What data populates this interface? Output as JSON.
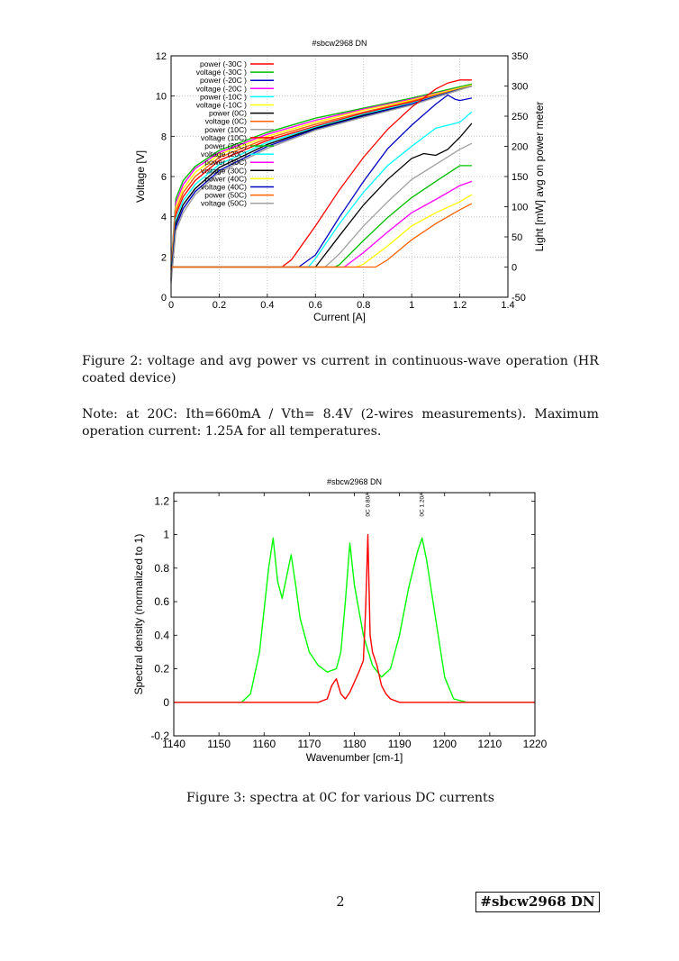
{
  "figure2": {
    "chart_data": {
      "type": "line",
      "title": "#sbcw2968 DN",
      "xlabel": "Current [A]",
      "ylabel": "Voltage [V]",
      "y2label": "Light [mW] avg on power meter",
      "xlim": [
        0,
        1.4
      ],
      "ylim": [
        0,
        12
      ],
      "y2lim": [
        -50,
        350
      ],
      "xticks": [
        "0",
        "0.2",
        "0.4",
        "0.6",
        "0.8",
        "1",
        "1.2",
        "1.4"
      ],
      "yticks": [
        "0",
        "2",
        "4",
        "6",
        "8",
        "10",
        "12"
      ],
      "y2ticks": [
        "-50",
        "0",
        "50",
        "100",
        "150",
        "200",
        "250",
        "300",
        "350"
      ],
      "grid": true,
      "legend_position": "top-left",
      "legend": [
        "power (-30C )",
        "voltage (-30C )",
        "power (-20C )",
        "voltage (-20C )",
        "power (-10C )",
        "voltage (-10C )",
        "power (0C)",
        "voltage (0C)",
        "power (10C)",
        "voltage (10C)",
        "power (20C)",
        "voltage (20C)",
        "power (30C)",
        "voltage (30C)",
        "power (40C)",
        "voltage (40C)",
        "power (50C)",
        "voltage (50C)"
      ],
      "voltage_series": [
        {
          "name": "voltage (-30C )",
          "color": "#00c000",
          "x": [
            0,
            0.02,
            0.05,
            0.1,
            0.2,
            0.4,
            0.6,
            0.8,
            1.0,
            1.25
          ],
          "y": [
            1.5,
            4.9,
            5.8,
            6.5,
            7.3,
            8.2,
            8.9,
            9.4,
            9.9,
            10.6
          ]
        },
        {
          "name": "voltage (-20C )",
          "color": "#ff00ff",
          "x": [
            0,
            0.02,
            0.05,
            0.1,
            0.2,
            0.4,
            0.6,
            0.8,
            1.0,
            1.25
          ],
          "y": [
            1.4,
            4.7,
            5.6,
            6.4,
            7.2,
            8.1,
            8.8,
            9.35,
            9.85,
            10.55
          ]
        },
        {
          "name": "voltage (-10C )",
          "color": "#ffff00",
          "x": [
            0,
            0.02,
            0.05,
            0.1,
            0.2,
            0.4,
            0.6,
            0.8,
            1.0,
            1.25
          ],
          "y": [
            1.3,
            4.5,
            5.4,
            6.2,
            7.1,
            8.0,
            8.7,
            9.3,
            9.8,
            10.55
          ]
        },
        {
          "name": "voltage (0C)",
          "color": "#ff6000",
          "x": [
            0,
            0.02,
            0.05,
            0.1,
            0.2,
            0.4,
            0.6,
            0.8,
            1.0,
            1.25
          ],
          "y": [
            1.2,
            4.3,
            5.2,
            6.0,
            6.95,
            7.9,
            8.6,
            9.2,
            9.75,
            10.5
          ]
        },
        {
          "name": "voltage (10C)",
          "color": "#ff0000",
          "x": [
            0,
            0.02,
            0.05,
            0.1,
            0.2,
            0.4,
            0.6,
            0.8,
            1.0,
            1.25
          ],
          "y": [
            1.1,
            4.1,
            5.0,
            5.8,
            6.8,
            7.8,
            8.5,
            9.15,
            9.7,
            10.5
          ]
        },
        {
          "name": "voltage (20C)",
          "color": "#00ffff",
          "x": [
            0,
            0.02,
            0.05,
            0.1,
            0.2,
            0.4,
            0.6,
            0.8,
            1.0,
            1.25
          ],
          "y": [
            1.0,
            3.9,
            4.8,
            5.6,
            6.6,
            7.7,
            8.45,
            9.1,
            9.65,
            10.5
          ]
        },
        {
          "name": "voltage (30C)",
          "color": "#000000",
          "x": [
            0,
            0.02,
            0.05,
            0.1,
            0.2,
            0.4,
            0.6,
            0.8,
            1.0,
            1.25
          ],
          "y": [
            0.9,
            3.7,
            4.6,
            5.4,
            6.45,
            7.6,
            8.4,
            9.05,
            9.6,
            10.5
          ]
        },
        {
          "name": "voltage (40C)",
          "color": "#0000c0",
          "x": [
            0,
            0.02,
            0.05,
            0.1,
            0.2,
            0.4,
            0.6,
            0.8,
            1.0,
            1.25
          ],
          "y": [
            0.8,
            3.5,
            4.4,
            5.25,
            6.3,
            7.5,
            8.35,
            9.0,
            9.6,
            10.5
          ]
        },
        {
          "name": "voltage (50C)",
          "color": "#a0a0a0",
          "x": [
            0,
            0.02,
            0.05,
            0.1,
            0.2,
            0.4,
            0.6,
            0.8,
            1.0,
            1.25
          ],
          "y": [
            0.7,
            3.3,
            4.2,
            5.1,
            6.2,
            7.4,
            8.3,
            8.95,
            9.55,
            10.5
          ]
        }
      ],
      "power_series": [
        {
          "name": "power (-30C )",
          "color": "#ff0000",
          "x": [
            0,
            0.46,
            0.5,
            0.6,
            0.7,
            0.8,
            0.9,
            1.0,
            1.1,
            1.15,
            1.2,
            1.25
          ],
          "y": [
            0,
            0,
            12,
            68,
            128,
            182,
            228,
            265,
            295,
            305,
            310,
            310
          ]
        },
        {
          "name": "power (-20C )",
          "color": "#0000c0",
          "x": [
            0,
            0.53,
            0.6,
            0.7,
            0.8,
            0.9,
            1.0,
            1.1,
            1.15,
            1.18,
            1.2,
            1.25
          ],
          "y": [
            0,
            0,
            20,
            83,
            142,
            196,
            235,
            270,
            285,
            278,
            276,
            280
          ]
        },
        {
          "name": "power (-10C )",
          "color": "#00ffff",
          "x": [
            0,
            0.57,
            0.6,
            0.7,
            0.8,
            0.9,
            1.0,
            1.1,
            1.15,
            1.2,
            1.25
          ],
          "y": [
            0,
            0,
            14,
            72,
            124,
            168,
            200,
            230,
            235,
            240,
            257
          ]
        },
        {
          "name": "power (0C)",
          "color": "#000000",
          "x": [
            0,
            0.6,
            0.7,
            0.8,
            0.9,
            1.0,
            1.05,
            1.1,
            1.15,
            1.2,
            1.25
          ],
          "y": [
            0,
            0,
            52,
            103,
            145,
            180,
            188,
            185,
            195,
            215,
            238
          ]
        },
        {
          "name": "power (10C)",
          "color": "#a0a0a0",
          "x": [
            0,
            0.64,
            0.7,
            0.8,
            0.9,
            1.0,
            1.1,
            1.2,
            1.25
          ],
          "y": [
            0,
            0,
            22,
            68,
            108,
            145,
            170,
            195,
            205
          ]
        },
        {
          "name": "power (20C)",
          "color": "#00c000",
          "x": [
            0,
            0.68,
            0.7,
            0.8,
            0.9,
            1.0,
            1.1,
            1.2,
            1.25
          ],
          "y": [
            0,
            0,
            4,
            44,
            82,
            115,
            142,
            168,
            168
          ]
        },
        {
          "name": "power (30C)",
          "color": "#ff00ff",
          "x": [
            0,
            0.72,
            0.8,
            0.9,
            1.0,
            1.1,
            1.2,
            1.25
          ],
          "y": [
            0,
            0,
            24,
            58,
            90,
            112,
            135,
            142
          ]
        },
        {
          "name": "power (40C)",
          "color": "#ffff00",
          "x": [
            0,
            0.77,
            0.8,
            0.9,
            1.0,
            1.1,
            1.2,
            1.25
          ],
          "y": [
            0,
            0,
            5,
            35,
            68,
            90,
            108,
            120
          ]
        },
        {
          "name": "power (50C)",
          "color": "#ff6000",
          "x": [
            0,
            0.85,
            0.9,
            1.0,
            1.1,
            1.2,
            1.25
          ],
          "y": [
            0,
            0,
            12,
            45,
            72,
            95,
            105
          ]
        }
      ]
    }
  },
  "caption2": "Figure 2: voltage and avg power vs current in continuous-wave operation (HR coated device)",
  "note": "Note: at 20C: Ith=660mA / Vth= 8.4V (2-wires measurements). Maximum operation current: 1.25A for all temperatures.",
  "figure3": {
    "chart_data": {
      "type": "line",
      "title": "#sbcw2968 DN",
      "xlabel": "Wavenumber [cm-1]",
      "ylabel": "Spectral density (normalized to 1)",
      "xlim": [
        1140,
        1220
      ],
      "ylim": [
        -0.2,
        1.25
      ],
      "xticks": [
        "1140",
        "1150",
        "1160",
        "1170",
        "1180",
        "1190",
        "1200",
        "1210",
        "1220"
      ],
      "yticks": [
        "-0.2",
        "0",
        "0.2",
        "0.4",
        "0.6",
        "0.8",
        "1",
        "1.2"
      ],
      "grid": false,
      "annotations": [
        "0C 0.80A",
        "0C 1.20A"
      ],
      "series": [
        {
          "name": "0C 1.20A",
          "color": "#00ff00",
          "x": [
            1140,
            1155,
            1157,
            1159,
            1161,
            1162,
            1163,
            1164,
            1165,
            1166,
            1167,
            1168,
            1170,
            1172,
            1174,
            1176,
            1177,
            1178,
            1179,
            1180,
            1182,
            1184,
            1186,
            1188,
            1190,
            1192,
            1194,
            1195,
            1196,
            1198,
            1200,
            1202,
            1205,
            1220
          ],
          "y": [
            0,
            0,
            0.05,
            0.3,
            0.8,
            0.98,
            0.72,
            0.62,
            0.75,
            0.88,
            0.7,
            0.5,
            0.3,
            0.22,
            0.18,
            0.2,
            0.3,
            0.6,
            0.95,
            0.7,
            0.4,
            0.22,
            0.15,
            0.2,
            0.4,
            0.68,
            0.9,
            0.98,
            0.85,
            0.5,
            0.15,
            0.02,
            0,
            0
          ]
        },
        {
          "name": "0C 0.80A",
          "color": "#ff0000",
          "x": [
            1140,
            1172,
            1174,
            1175,
            1176,
            1177,
            1178,
            1179,
            1180,
            1181,
            1182,
            1182.5,
            1183,
            1183.5,
            1184,
            1185,
            1186,
            1187,
            1188,
            1190,
            1220
          ],
          "y": [
            0,
            0,
            0.02,
            0.1,
            0.14,
            0.05,
            0.02,
            0.06,
            0.12,
            0.18,
            0.25,
            0.55,
            1.0,
            0.4,
            0.3,
            0.22,
            0.1,
            0.05,
            0.02,
            0,
            0
          ]
        }
      ]
    }
  },
  "caption3": "Figure 3: spectra at 0C for various DC currents",
  "footer": {
    "page_number": "2",
    "tag": "#sbcw2968 DN"
  }
}
